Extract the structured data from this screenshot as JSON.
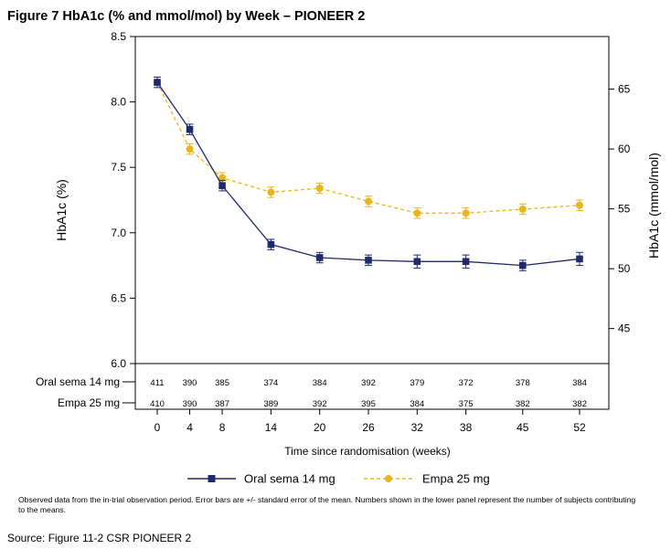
{
  "figure": {
    "title": "Figure 7 HbA1c (% and mmol/mol) by Week – PIONEER 2",
    "footnote": "Observed data from the in-trial observation period. Error bars are +/- standard error of the mean. Numbers shown in the lower panel represent the number of subjects contributing to the means.",
    "source": "Source: Figure 11-2 CSR PIONEER 2"
  },
  "chart_data": {
    "type": "line",
    "xlabel": "Time since randomisation (weeks)",
    "ylabel": "HbA1c (%)",
    "ylabel_right": "HbA1c (mmol/mol)",
    "x": [
      0,
      4,
      8,
      14,
      20,
      26,
      32,
      38,
      45,
      52
    ],
    "xticks": [
      0,
      4,
      8,
      14,
      20,
      26,
      32,
      38,
      45,
      52
    ],
    "ylim": [
      6.0,
      8.5
    ],
    "yticks": [
      6.0,
      6.5,
      7.0,
      7.5,
      8.0,
      8.5
    ],
    "ytick_labels": [
      "6.0",
      "6.5",
      "7.0",
      "7.5",
      "8.0",
      "8.5"
    ],
    "yticks_right": [
      45,
      50,
      55,
      60,
      65
    ],
    "grid": false,
    "legend_position": "bottom",
    "series": [
      {
        "name": "Oral sema 14 mg",
        "color": "#1f2a6b",
        "line_style": "solid",
        "marker": "square",
        "values": [
          8.15,
          7.79,
          7.36,
          6.91,
          6.81,
          6.79,
          6.78,
          6.78,
          6.75,
          6.8
        ],
        "errors": [
          0.04,
          0.04,
          0.04,
          0.04,
          0.04,
          0.04,
          0.05,
          0.05,
          0.04,
          0.05
        ],
        "n": [
          "411",
          "390",
          "385",
          "374",
          "384",
          "392",
          "379",
          "372",
          "378",
          "384"
        ]
      },
      {
        "name": "Empa 25 mg",
        "color": "#e8b619",
        "line_style": "dashed",
        "marker": "circle",
        "values": [
          8.15,
          7.64,
          7.42,
          7.31,
          7.34,
          7.24,
          7.15,
          7.15,
          7.18,
          7.21
        ],
        "errors": [
          0.04,
          0.04,
          0.04,
          0.04,
          0.04,
          0.04,
          0.04,
          0.04,
          0.04,
          0.04
        ],
        "n": [
          "410",
          "390",
          "387",
          "389",
          "392",
          "395",
          "384",
          "375",
          "382",
          "382"
        ]
      }
    ]
  }
}
